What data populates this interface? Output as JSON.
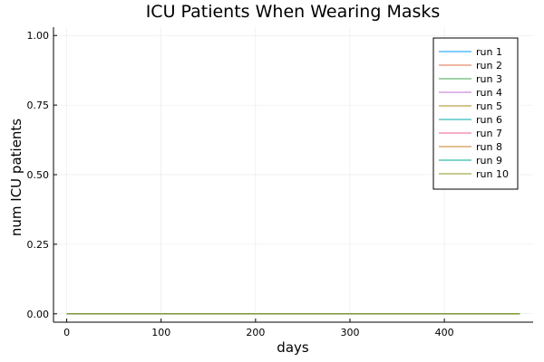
{
  "chart_data": {
    "type": "line",
    "title": "ICU Patients When Wearing Masks",
    "xlabel": "days",
    "ylabel": "num ICU patients",
    "xlim": [
      -14,
      494
    ],
    "ylim": [
      -0.03,
      1.03
    ],
    "xticks": [
      0,
      100,
      200,
      300,
      400
    ],
    "yticks": [
      0.0,
      0.25,
      0.5,
      0.75,
      1.0
    ],
    "xtick_labels": [
      "0",
      "100",
      "200",
      "300",
      "400"
    ],
    "ytick_labels": [
      "0.00",
      "0.25",
      "0.50",
      "0.75",
      "1.00"
    ],
    "grid": true,
    "legend_position": "top-right",
    "x": [
      0,
      480
    ],
    "series": [
      {
        "name": "run 1",
        "color": "#009AF9",
        "values": [
          0,
          0
        ]
      },
      {
        "name": "run 2",
        "color": "#E26F46",
        "values": [
          0,
          0
        ]
      },
      {
        "name": "run 3",
        "color": "#3EA44E",
        "values": [
          0,
          0
        ]
      },
      {
        "name": "run 4",
        "color": "#C271D2",
        "values": [
          0,
          0
        ]
      },
      {
        "name": "run 5",
        "color": "#AC8D18",
        "values": [
          0,
          0
        ]
      },
      {
        "name": "run 6",
        "color": "#00A9AD",
        "values": [
          0,
          0
        ]
      },
      {
        "name": "run 7",
        "color": "#ED5E93",
        "values": [
          0,
          0
        ]
      },
      {
        "name": "run 8",
        "color": "#C68125",
        "values": [
          0,
          0
        ]
      },
      {
        "name": "run 9",
        "color": "#00A98D",
        "values": [
          0,
          0
        ]
      },
      {
        "name": "run 10",
        "color": "#8E971D",
        "values": [
          0,
          0
        ]
      }
    ]
  }
}
